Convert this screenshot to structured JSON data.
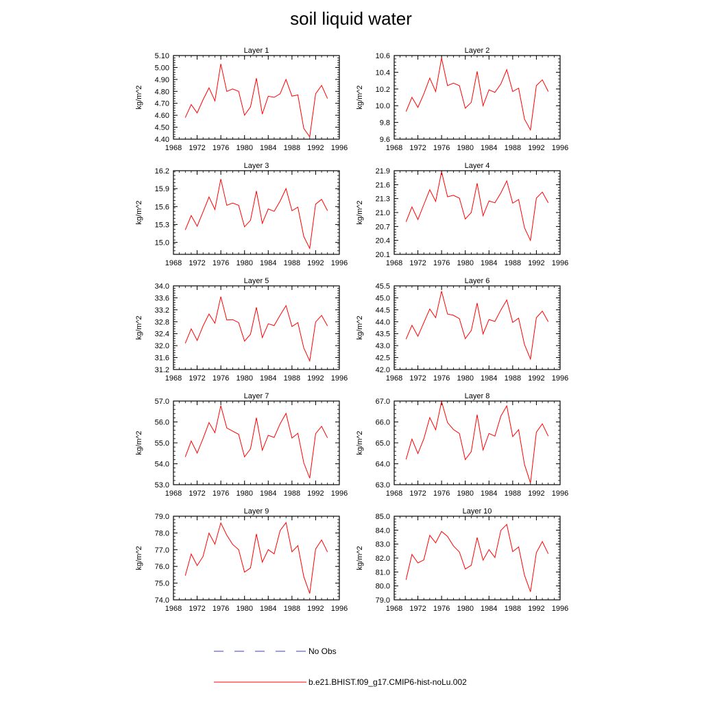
{
  "title": "soil liquid water",
  "chart_data": {
    "type": "line",
    "title": "soil liquid water",
    "ylabel": "kg/m^2",
    "x": [
      1970,
      1971,
      1972,
      1973,
      1974,
      1975,
      1976,
      1977,
      1978,
      1979,
      1980,
      1981,
      1982,
      1983,
      1984,
      1985,
      1986,
      1987,
      1988,
      1989,
      1990,
      1991,
      1992,
      1993,
      1994
    ],
    "xlim": [
      1968,
      1996
    ],
    "xticks": [
      "1968",
      "1972",
      "1976",
      "1980",
      "1984",
      "1988",
      "1992",
      "1996"
    ],
    "legend": [
      {
        "label": "No Obs",
        "color": "#3a3acf",
        "style": "dashed"
      },
      {
        "label": "b.e21.BHIST.f09_g17.CMIP6-hist-noLu.002",
        "color": "#ff0000",
        "style": "solid"
      }
    ],
    "panels": [
      {
        "title": "Layer 1",
        "ylim": [
          4.4,
          5.1
        ],
        "yticks": [
          "4.40",
          "4.50",
          "4.60",
          "4.70",
          "4.80",
          "4.90",
          "5.00",
          "5.10"
        ],
        "values": [
          4.58,
          4.69,
          4.62,
          4.73,
          4.83,
          4.72,
          5.03,
          4.8,
          4.82,
          4.8,
          4.6,
          4.67,
          4.91,
          4.61,
          4.76,
          4.75,
          4.78,
          4.9,
          4.76,
          4.77,
          4.49,
          4.42,
          4.78,
          4.85,
          4.74
        ]
      },
      {
        "title": "Layer 2",
        "ylim": [
          9.6,
          10.6
        ],
        "yticks": [
          "9.6",
          "9.8",
          "10.0",
          "10.2",
          "10.4",
          "10.6"
        ],
        "values": [
          9.93,
          10.1,
          9.98,
          10.14,
          10.33,
          10.17,
          10.57,
          10.24,
          10.27,
          10.24,
          9.97,
          10.04,
          10.41,
          10.0,
          10.19,
          10.16,
          10.26,
          10.43,
          10.17,
          10.21,
          9.84,
          9.71,
          10.24,
          10.31,
          10.17
        ]
      },
      {
        "title": "Layer 3",
        "ylim": [
          14.8,
          16.2
        ],
        "yticks": [
          "15.0",
          "15.3",
          "15.6",
          "15.9",
          "16.2"
        ],
        "values": [
          15.21,
          15.45,
          15.27,
          15.51,
          15.76,
          15.55,
          16.06,
          15.62,
          15.66,
          15.62,
          15.26,
          15.37,
          15.86,
          15.32,
          15.56,
          15.52,
          15.69,
          15.9,
          15.53,
          15.59,
          15.1,
          14.9,
          15.64,
          15.72,
          15.53
        ]
      },
      {
        "title": "Layer 4",
        "ylim": [
          20.1,
          21.9
        ],
        "yticks": [
          "20.1",
          "20.4",
          "20.7",
          "21.0",
          "21.3",
          "21.6",
          "21.9"
        ],
        "values": [
          20.8,
          21.12,
          20.85,
          21.17,
          21.49,
          21.24,
          21.88,
          21.34,
          21.37,
          21.31,
          20.86,
          21.0,
          21.63,
          20.93,
          21.25,
          21.21,
          21.42,
          21.68,
          21.2,
          21.28,
          20.67,
          20.4,
          21.31,
          21.44,
          21.21
        ]
      },
      {
        "title": "Layer 5",
        "ylim": [
          31.2,
          34.0
        ],
        "yticks": [
          "31.2",
          "31.6",
          "32.0",
          "32.4",
          "32.8",
          "33.2",
          "33.6",
          "34.0"
        ],
        "values": [
          32.08,
          32.56,
          32.17,
          32.66,
          33.06,
          32.75,
          33.64,
          32.86,
          32.87,
          32.77,
          32.15,
          32.38,
          33.28,
          32.27,
          32.73,
          32.67,
          33.02,
          33.34,
          32.64,
          32.77,
          31.92,
          31.49,
          32.79,
          33.01,
          32.66
        ]
      },
      {
        "title": "Layer 6",
        "ylim": [
          42.0,
          45.5
        ],
        "yticks": [
          "42.0",
          "42.5",
          "43.0",
          "43.5",
          "44.0",
          "44.5",
          "45.0",
          "45.5"
        ],
        "values": [
          43.27,
          43.85,
          43.39,
          43.96,
          44.53,
          44.17,
          45.28,
          44.32,
          44.27,
          44.13,
          43.29,
          43.63,
          44.78,
          43.49,
          44.09,
          44.01,
          44.49,
          44.91,
          43.97,
          44.15,
          43.04,
          42.44,
          44.17,
          44.44,
          44.0
        ]
      },
      {
        "title": "Layer 7",
        "ylim": [
          53.0,
          57.0
        ],
        "yticks": [
          "53.0",
          "54.0",
          "55.0",
          "56.0",
          "57.0"
        ],
        "values": [
          54.33,
          55.09,
          54.51,
          55.21,
          55.97,
          55.49,
          56.78,
          55.71,
          55.56,
          55.41,
          54.33,
          54.71,
          56.2,
          54.65,
          55.36,
          55.26,
          55.91,
          56.41,
          55.23,
          55.46,
          54.05,
          53.31,
          55.44,
          55.79,
          55.24
        ]
      },
      {
        "title": "Layer 8",
        "ylim": [
          63.0,
          67.0
        ],
        "yticks": [
          "63.0",
          "64.0",
          "65.0",
          "66.0",
          "67.0"
        ],
        "values": [
          64.21,
          65.18,
          64.49,
          65.19,
          66.21,
          65.63,
          66.98,
          65.97,
          65.64,
          65.45,
          64.2,
          64.58,
          66.35,
          64.66,
          65.45,
          65.32,
          66.28,
          66.77,
          65.3,
          65.63,
          63.96,
          63.09,
          65.51,
          65.91,
          65.32
        ]
      },
      {
        "title": "Layer 9",
        "ylim": [
          74.0,
          79.0
        ],
        "yticks": [
          "74.0",
          "75.0",
          "76.0",
          "77.0",
          "78.0",
          "79.0"
        ],
        "values": [
          75.45,
          76.74,
          76.05,
          76.6,
          77.99,
          77.33,
          78.6,
          77.87,
          77.31,
          77.0,
          75.66,
          75.91,
          77.94,
          76.26,
          77.0,
          76.75,
          78.14,
          78.62,
          76.87,
          77.24,
          75.39,
          74.38,
          77.04,
          77.58,
          76.86
        ]
      },
      {
        "title": "Layer 10",
        "ylim": [
          79.0,
          85.0
        ],
        "yticks": [
          "79.0",
          "80.0",
          "81.0",
          "82.0",
          "83.0",
          "84.0",
          "85.0"
        ],
        "values": [
          80.44,
          82.26,
          81.65,
          81.86,
          83.63,
          83.09,
          83.91,
          83.55,
          82.87,
          82.44,
          81.21,
          81.48,
          83.47,
          81.85,
          82.6,
          82.04,
          83.98,
          84.41,
          82.46,
          82.79,
          80.76,
          79.58,
          82.39,
          83.18,
          82.31
        ]
      }
    ]
  }
}
